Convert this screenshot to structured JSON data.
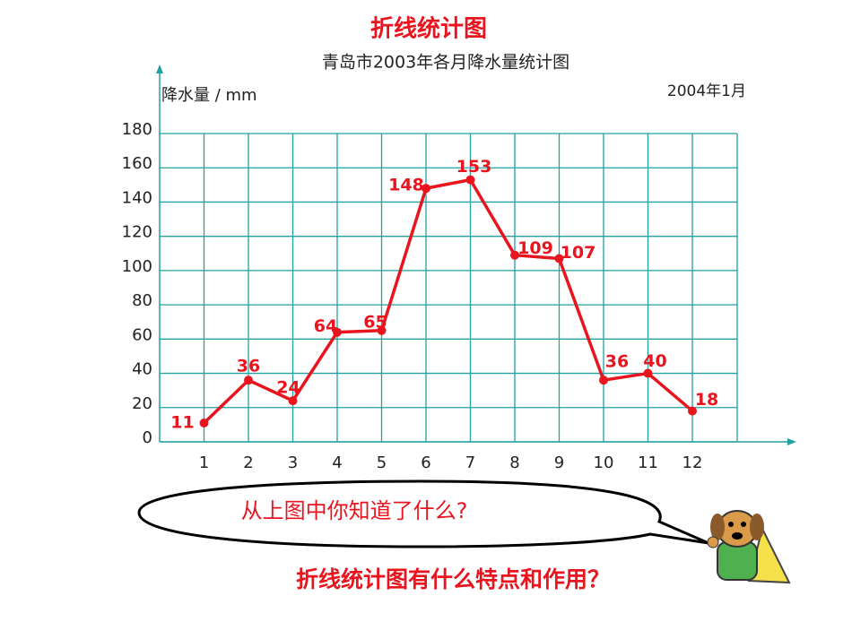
{
  "chart_data": {
    "type": "line",
    "title": "折线统计图",
    "subtitle": "青岛市2003年各月降水量统计图",
    "y_label": "降水量 / mm",
    "annotation": "2004年1月",
    "categories": [
      "1",
      "2",
      "3",
      "4",
      "5",
      "6",
      "7",
      "8",
      "9",
      "10",
      "11",
      "12"
    ],
    "values": [
      11,
      36,
      24,
      64,
      65,
      148,
      153,
      109,
      107,
      36,
      40,
      18
    ],
    "color": "#e8141e",
    "ylim": [
      0,
      180
    ],
    "yticks": [
      0,
      20,
      40,
      60,
      80,
      100,
      120,
      140,
      160,
      180
    ],
    "grid": true
  },
  "speech_bubble": "从上图中你知道了什么?",
  "question": "折线统计图有什么特点和作用？"
}
